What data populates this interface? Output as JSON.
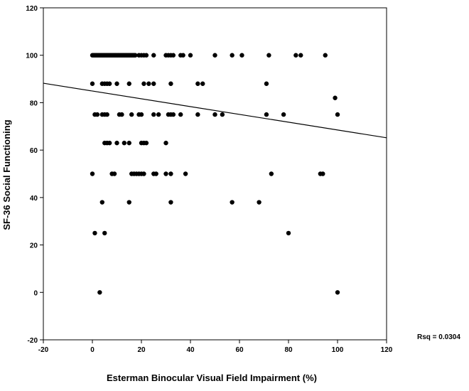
{
  "chart_data": {
    "type": "scatter",
    "xlabel": "Esterman Binocular Visual Field Impairment (%)",
    "ylabel": "SF-36 Social Functioning",
    "xlim": [
      -20,
      120
    ],
    "ylim": [
      -20,
      120
    ],
    "x_ticks": [
      -20,
      0,
      20,
      40,
      60,
      80,
      100,
      120
    ],
    "y_ticks": [
      -20,
      0,
      20,
      40,
      60,
      80,
      100,
      120
    ],
    "x_tick_labels": [
      "-20",
      "0",
      "20",
      "40",
      "60",
      "80",
      "100",
      "120"
    ],
    "y_tick_labels": [
      "-20",
      "0",
      "20",
      "40",
      "60",
      "80",
      "100",
      "120"
    ],
    "grid": false,
    "annotation": "Rsq = 0.0304",
    "regression_line": {
      "x": [
        -20,
        120
      ],
      "y": [
        88.2,
        65.2
      ]
    },
    "points": [
      {
        "x": 0,
        "y": 100
      },
      {
        "x": 0.5,
        "y": 100
      },
      {
        "x": 1,
        "y": 100
      },
      {
        "x": 1.5,
        "y": 100
      },
      {
        "x": 2,
        "y": 100
      },
      {
        "x": 2.5,
        "y": 100
      },
      {
        "x": 3,
        "y": 100
      },
      {
        "x": 3.5,
        "y": 100
      },
      {
        "x": 4,
        "y": 100
      },
      {
        "x": 4.5,
        "y": 100
      },
      {
        "x": 5,
        "y": 100
      },
      {
        "x": 5.5,
        "y": 100
      },
      {
        "x": 6,
        "y": 100
      },
      {
        "x": 6.5,
        "y": 100
      },
      {
        "x": 7,
        "y": 100
      },
      {
        "x": 7.5,
        "y": 100
      },
      {
        "x": 8,
        "y": 100
      },
      {
        "x": 8.5,
        "y": 100
      },
      {
        "x": 9,
        "y": 100
      },
      {
        "x": 9.5,
        "y": 100
      },
      {
        "x": 10,
        "y": 100
      },
      {
        "x": 10.5,
        "y": 100
      },
      {
        "x": 11,
        "y": 100
      },
      {
        "x": 11.5,
        "y": 100
      },
      {
        "x": 12,
        "y": 100
      },
      {
        "x": 12.5,
        "y": 100
      },
      {
        "x": 13,
        "y": 100
      },
      {
        "x": 13.5,
        "y": 100
      },
      {
        "x": 14,
        "y": 100
      },
      {
        "x": 14.5,
        "y": 100
      },
      {
        "x": 15,
        "y": 100
      },
      {
        "x": 15.5,
        "y": 100
      },
      {
        "x": 16,
        "y": 100
      },
      {
        "x": 16.5,
        "y": 100
      },
      {
        "x": 17,
        "y": 100
      },
      {
        "x": 17.5,
        "y": 100
      },
      {
        "x": 19,
        "y": 100
      },
      {
        "x": 20,
        "y": 100
      },
      {
        "x": 21,
        "y": 100
      },
      {
        "x": 22,
        "y": 100
      },
      {
        "x": 25,
        "y": 100
      },
      {
        "x": 30,
        "y": 100
      },
      {
        "x": 31,
        "y": 100
      },
      {
        "x": 32,
        "y": 100
      },
      {
        "x": 33,
        "y": 100
      },
      {
        "x": 36,
        "y": 100
      },
      {
        "x": 37,
        "y": 100
      },
      {
        "x": 40,
        "y": 100
      },
      {
        "x": 50,
        "y": 100
      },
      {
        "x": 57,
        "y": 100
      },
      {
        "x": 61,
        "y": 100
      },
      {
        "x": 72,
        "y": 100
      },
      {
        "x": 83,
        "y": 100
      },
      {
        "x": 85,
        "y": 100
      },
      {
        "x": 95,
        "y": 100
      },
      {
        "x": 0,
        "y": 88
      },
      {
        "x": 4,
        "y": 88
      },
      {
        "x": 5,
        "y": 88
      },
      {
        "x": 6,
        "y": 88
      },
      {
        "x": 7,
        "y": 88
      },
      {
        "x": 10,
        "y": 88
      },
      {
        "x": 15,
        "y": 88
      },
      {
        "x": 21,
        "y": 88
      },
      {
        "x": 23,
        "y": 88
      },
      {
        "x": 25,
        "y": 88
      },
      {
        "x": 32,
        "y": 88
      },
      {
        "x": 43,
        "y": 88
      },
      {
        "x": 45,
        "y": 88
      },
      {
        "x": 71,
        "y": 88
      },
      {
        "x": 99,
        "y": 82
      },
      {
        "x": 1,
        "y": 75
      },
      {
        "x": 2,
        "y": 75
      },
      {
        "x": 4,
        "y": 75
      },
      {
        "x": 5,
        "y": 75
      },
      {
        "x": 6,
        "y": 75
      },
      {
        "x": 11,
        "y": 75
      },
      {
        "x": 12,
        "y": 75
      },
      {
        "x": 16,
        "y": 75
      },
      {
        "x": 19,
        "y": 75
      },
      {
        "x": 20,
        "y": 75
      },
      {
        "x": 25,
        "y": 75
      },
      {
        "x": 27,
        "y": 75
      },
      {
        "x": 31,
        "y": 75
      },
      {
        "x": 32,
        "y": 75
      },
      {
        "x": 33,
        "y": 75
      },
      {
        "x": 36,
        "y": 75
      },
      {
        "x": 43,
        "y": 75
      },
      {
        "x": 50,
        "y": 75
      },
      {
        "x": 53,
        "y": 75
      },
      {
        "x": 71,
        "y": 75
      },
      {
        "x": 78,
        "y": 75
      },
      {
        "x": 100,
        "y": 75
      },
      {
        "x": 5,
        "y": 63
      },
      {
        "x": 6,
        "y": 63
      },
      {
        "x": 7,
        "y": 63
      },
      {
        "x": 10,
        "y": 63
      },
      {
        "x": 13,
        "y": 63
      },
      {
        "x": 15,
        "y": 63
      },
      {
        "x": 20,
        "y": 63
      },
      {
        "x": 21,
        "y": 63
      },
      {
        "x": 22,
        "y": 63
      },
      {
        "x": 30,
        "y": 63
      },
      {
        "x": 0,
        "y": 50
      },
      {
        "x": 8,
        "y": 50
      },
      {
        "x": 9,
        "y": 50
      },
      {
        "x": 16,
        "y": 50
      },
      {
        "x": 17,
        "y": 50
      },
      {
        "x": 18,
        "y": 50
      },
      {
        "x": 19,
        "y": 50
      },
      {
        "x": 20,
        "y": 50
      },
      {
        "x": 21,
        "y": 50
      },
      {
        "x": 25,
        "y": 50
      },
      {
        "x": 26,
        "y": 50
      },
      {
        "x": 30,
        "y": 50
      },
      {
        "x": 32,
        "y": 50
      },
      {
        "x": 38,
        "y": 50
      },
      {
        "x": 73,
        "y": 50
      },
      {
        "x": 93,
        "y": 50
      },
      {
        "x": 94,
        "y": 50
      },
      {
        "x": 4,
        "y": 38
      },
      {
        "x": 15,
        "y": 38
      },
      {
        "x": 32,
        "y": 38
      },
      {
        "x": 57,
        "y": 38
      },
      {
        "x": 68,
        "y": 38
      },
      {
        "x": 1,
        "y": 25
      },
      {
        "x": 5,
        "y": 25
      },
      {
        "x": 80,
        "y": 25
      },
      {
        "x": 3,
        "y": 0
      },
      {
        "x": 100,
        "y": 0
      }
    ]
  }
}
